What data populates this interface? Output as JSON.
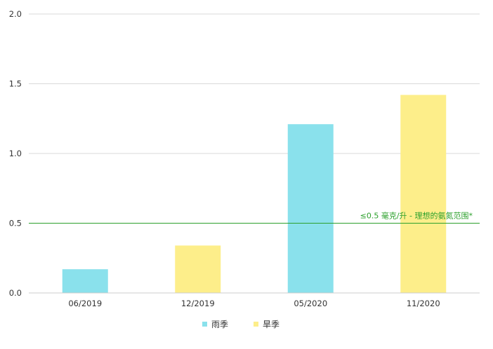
{
  "chart_data": {
    "type": "bar",
    "categories": [
      "06/2019",
      "12/2019",
      "05/2020",
      "11/2020"
    ],
    "values": [
      0.17,
      0.34,
      1.21,
      1.42
    ],
    "season_of_bar": [
      "rainy",
      "dry",
      "rainy",
      "dry"
    ],
    "ylim": [
      0,
      2.0
    ],
    "yticks": [
      "0.0",
      "0.5",
      "1.0",
      "1.5",
      "2.0"
    ],
    "ytick_values": [
      0,
      0.5,
      1.0,
      1.5,
      2.0
    ],
    "grid": true,
    "legend_position": "bottom",
    "legend": [
      {
        "key": "rainy",
        "label": "雨季",
        "color": "#8ae1ec"
      },
      {
        "key": "dry",
        "label": "旱季",
        "color": "#fdee8a"
      }
    ],
    "reference_line": {
      "value": 0.5,
      "label": "≤0.5 毫克/升 - 理想的氨氮范围*",
      "color": "#2ca02c"
    },
    "colors": {
      "grid": "#d9d9d9",
      "axis": "#cccccc",
      "text": "#333333"
    }
  }
}
